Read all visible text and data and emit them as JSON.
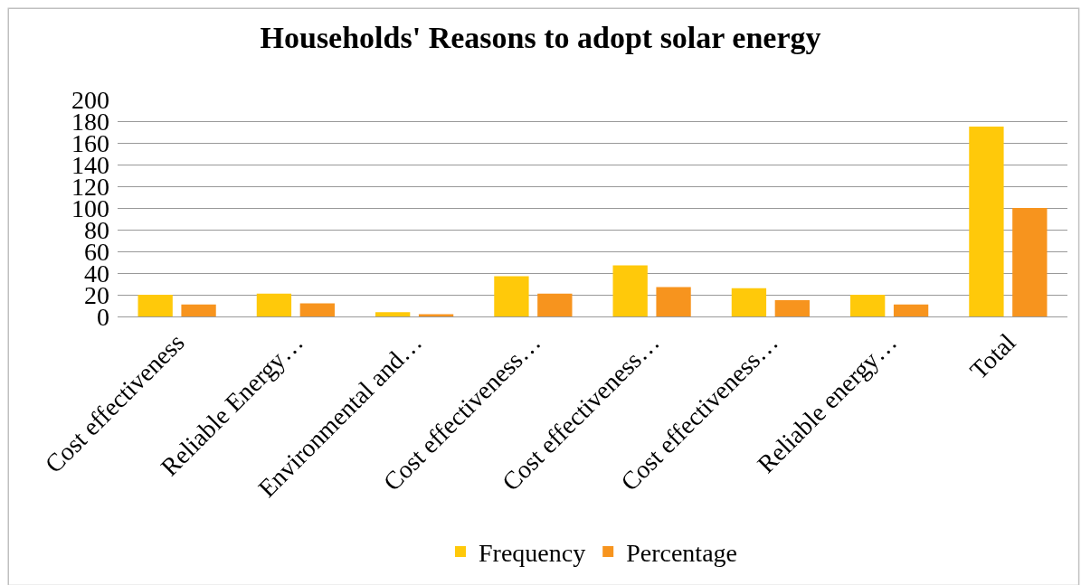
{
  "chart_data": {
    "type": "bar",
    "title": "Households' Reasons to adopt solar energy",
    "categories": [
      "Cost effectiveness",
      "Reliable Energy…",
      "Environmental and…",
      "Cost effectiveness…",
      "Cost effectiveness…",
      "Cost effectiveness…",
      "Reliable energy…",
      "Total"
    ],
    "series": [
      {
        "name": "Frequency",
        "color": "#ffc90a",
        "values": [
          20,
          21,
          4,
          37,
          47,
          26,
          20,
          175
        ]
      },
      {
        "name": "Percentage",
        "color": "#f7941e",
        "values": [
          11,
          12,
          2,
          21,
          27,
          15,
          11,
          100
        ]
      }
    ],
    "ylim": [
      0,
      200
    ],
    "yticks": [
      0,
      20,
      40,
      60,
      80,
      100,
      120,
      140,
      160,
      180,
      200
    ],
    "grid": "y",
    "legend": "bottom"
  }
}
